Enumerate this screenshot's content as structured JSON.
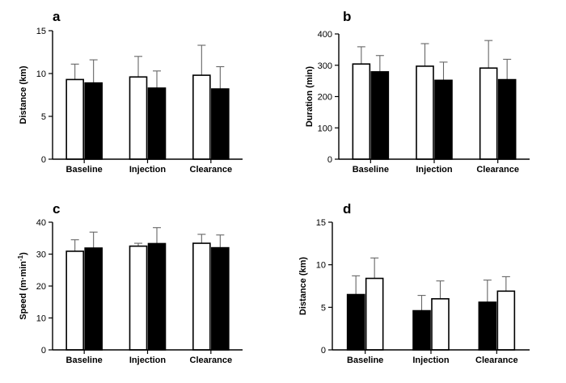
{
  "chart_data": [
    {
      "type": "bar",
      "panel_label": "a",
      "ylabel": "Distance (km)",
      "ylabel_sup": "",
      "ylabel_suffix": "",
      "ylim": [
        0,
        15
      ],
      "yticks": [
        0,
        5,
        10,
        15
      ],
      "categories": [
        "Baseline",
        "Injection",
        "Clearance"
      ],
      "series": [
        {
          "fill": "#ffffff",
          "values": [
            9.3,
            9.6,
            9.8
          ],
          "errors": [
            1.8,
            2.4,
            3.5
          ]
        },
        {
          "fill": "#000000",
          "values": [
            8.9,
            8.3,
            8.2
          ],
          "errors": [
            2.7,
            2.0,
            2.6
          ]
        }
      ]
    },
    {
      "type": "bar",
      "panel_label": "b",
      "ylabel": "Duration (min)",
      "ylabel_sup": "",
      "ylabel_suffix": "",
      "ylim": [
        0,
        400
      ],
      "yticks": [
        0,
        100,
        200,
        300,
        400
      ],
      "categories": [
        "Baseline",
        "Injection",
        "Clearance"
      ],
      "series": [
        {
          "fill": "#ffffff",
          "values": [
            304,
            297,
            291
          ],
          "errors": [
            55,
            72,
            88
          ]
        },
        {
          "fill": "#000000",
          "values": [
            279,
            252,
            254
          ],
          "errors": [
            52,
            58,
            65
          ]
        }
      ]
    },
    {
      "type": "bar",
      "panel_label": "c",
      "ylabel": "Speed (m·min",
      "ylabel_sup": "-1",
      "ylabel_suffix": ")",
      "ylim": [
        0,
        40
      ],
      "yticks": [
        0,
        10,
        20,
        30,
        40
      ],
      "categories": [
        "Baseline",
        "Injection",
        "Clearance"
      ],
      "series": [
        {
          "fill": "#ffffff",
          "values": [
            30.9,
            32.5,
            33.4
          ],
          "errors": [
            3.6,
            0.9,
            2.8
          ]
        },
        {
          "fill": "#000000",
          "values": [
            31.9,
            33.3,
            32.0
          ],
          "errors": [
            5.0,
            5.0,
            4.0
          ]
        }
      ]
    },
    {
      "type": "bar",
      "panel_label": "d",
      "ylabel": "Distance (km)",
      "ylabel_sup": "",
      "ylabel_suffix": "",
      "ylim": [
        0,
        15
      ],
      "yticks": [
        0,
        5,
        10,
        15
      ],
      "categories": [
        "Baseline",
        "Injection",
        "Clearance"
      ],
      "series": [
        {
          "fill": "#000000",
          "values": [
            6.5,
            4.6,
            5.6
          ],
          "errors": [
            2.2,
            1.8,
            2.6
          ]
        },
        {
          "fill": "#ffffff",
          "values": [
            8.4,
            6.0,
            6.9
          ],
          "errors": [
            2.4,
            2.1,
            1.7
          ]
        }
      ]
    }
  ]
}
